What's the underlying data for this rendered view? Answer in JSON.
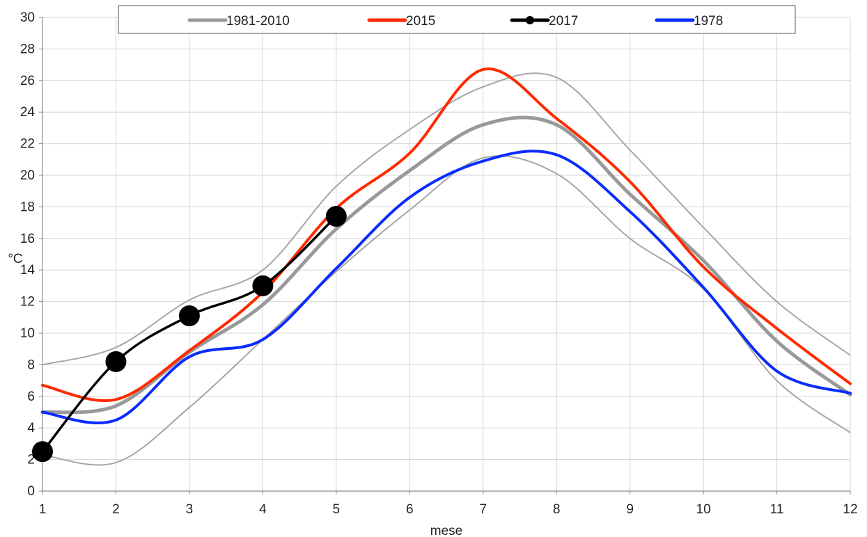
{
  "chart_data": {
    "type": "line",
    "title": "",
    "xlabel": "mese",
    "ylabel": "°C",
    "xlim": [
      1,
      12
    ],
    "ylim": [
      0,
      30
    ],
    "x_ticks": [
      1,
      2,
      3,
      4,
      5,
      6,
      7,
      8,
      9,
      10,
      11,
      12
    ],
    "y_ticks": [
      0,
      2,
      4,
      6,
      8,
      10,
      12,
      14,
      16,
      18,
      20,
      22,
      24,
      26,
      28,
      30
    ],
    "grid": true,
    "legend_position": "top",
    "band_color": "#a6a6a6",
    "band_upper": {
      "x": [
        1,
        2,
        3,
        4,
        5,
        6,
        7,
        8,
        9,
        10,
        11,
        12
      ],
      "values": [
        8.0,
        9.1,
        12.1,
        14.0,
        19.3,
        22.9,
        25.6,
        26.2,
        21.6,
        16.7,
        12.0,
        8.6
      ]
    },
    "band_lower": {
      "x": [
        1,
        2,
        3,
        4,
        5,
        6,
        7,
        8,
        9,
        10,
        11,
        12
      ],
      "values": [
        2.3,
        1.8,
        5.3,
        9.6,
        13.9,
        17.8,
        21.1,
        20.1,
        16.0,
        12.8,
        7.0,
        3.7
      ]
    },
    "series": [
      {
        "name": "1981-2010",
        "color": "#999999",
        "markers": false,
        "x": [
          1,
          2,
          3,
          4,
          5,
          6,
          7,
          8,
          9,
          10,
          11,
          12
        ],
        "values": [
          5.0,
          5.4,
          8.8,
          11.8,
          16.6,
          20.3,
          23.2,
          23.2,
          18.8,
          14.6,
          9.5,
          6.1
        ]
      },
      {
        "name": "2015",
        "color": "#ff2a00",
        "markers": false,
        "x": [
          1,
          2,
          3,
          4,
          5,
          6,
          7,
          8,
          9,
          10,
          11,
          12
        ],
        "values": [
          6.7,
          5.8,
          8.9,
          12.6,
          17.9,
          21.4,
          26.7,
          23.6,
          19.6,
          14.2,
          10.3,
          6.8
        ]
      },
      {
        "name": "2017",
        "color": "#000000",
        "markers": true,
        "x": [
          1,
          2,
          3,
          4,
          5
        ],
        "values": [
          2.5,
          8.2,
          11.1,
          13.0,
          17.4
        ]
      },
      {
        "name": "1978",
        "color": "#0a2cff",
        "markers": false,
        "x": [
          1,
          2,
          3,
          4,
          5,
          6,
          7,
          8,
          9,
          10,
          11,
          12
        ],
        "values": [
          5.0,
          4.5,
          8.5,
          9.6,
          14.1,
          18.6,
          20.9,
          21.3,
          17.7,
          12.9,
          7.6,
          6.2
        ]
      }
    ]
  }
}
